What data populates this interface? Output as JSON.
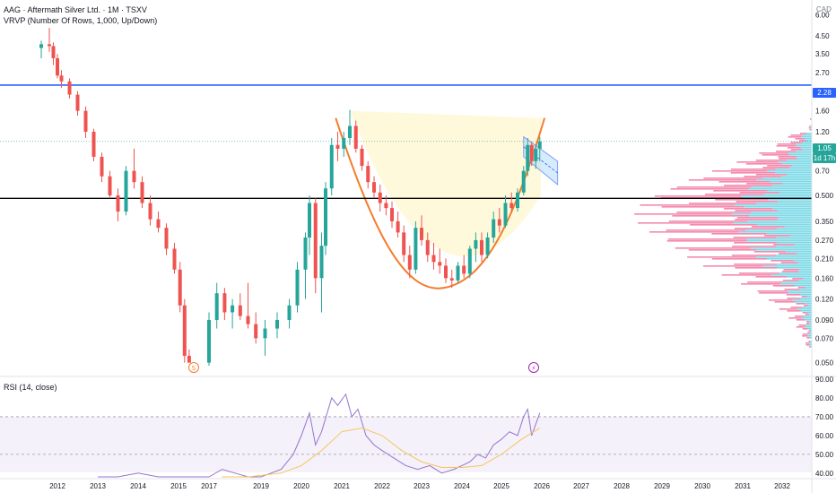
{
  "header": {
    "symbol_line": "AAG · Aftermath Silver Ltd. · 1M · TSXV",
    "vrvp_label": "VRVP (Number Of Rows, 1,000, Up/Down)",
    "currency": "CAD"
  },
  "price_tags": {
    "resistance": "2.28",
    "last": "1.05",
    "countdown": "1d 17h"
  },
  "events": {
    "dividend_icon": "dividend-s-icon",
    "split_icon": "lightning-icon"
  },
  "colors": {
    "up": "#26a69a",
    "down": "#ef5350",
    "resistance": "#2962ff",
    "support": "#000000",
    "cup": "#f57c2b",
    "cup_fill": "#fff9dc",
    "channel": "#2962ff",
    "rsi_line": "#9575cd",
    "rsi_ma": "#f7c45a",
    "vp_up": "#5dd0e0",
    "vp_down": "#f06292"
  },
  "chart_data": [
    {
      "type": "candlestick",
      "title": "AAG · Aftermath Silver Ltd. · 1M · TSXV",
      "ylabel": "CAD",
      "log_scale": true,
      "ylim": [
        0.044,
        6.5
      ],
      "x_ticks": [
        "2012",
        "2013",
        "2014",
        "2015",
        "2017",
        "2019",
        "2020",
        "2021",
        "2022",
        "2023",
        "2024",
        "2025",
        "2026",
        "2027",
        "2028",
        "2029",
        "2030",
        "2031",
        "2032"
      ],
      "y_ticks": [
        "6.00",
        "4.50",
        "3.50",
        "2.70",
        "2.10",
        "1.60",
        "1.20",
        "0.90",
        "0.70",
        "0.500",
        "0.350",
        "0.270",
        "0.210",
        "0.160",
        "0.120",
        "0.090",
        "0.070",
        "0.050"
      ],
      "horizontal_lines": [
        {
          "name": "resistance",
          "value": 2.28
        },
        {
          "name": "support",
          "value": 0.48
        }
      ],
      "last_price": 1.05,
      "cup_pattern": {
        "left_rim": 1.6,
        "bottom": 0.14,
        "right_rim": 1.45
      },
      "channel": {
        "start_top": 1.12,
        "start_bottom": 0.85,
        "end_top": 0.8,
        "end_bottom": 0.58
      },
      "candles": [
        {
          "t": 2011.6,
          "o": 3.8,
          "h": 4.2,
          "l": 3.3,
          "c": 4.0
        },
        {
          "t": 2011.8,
          "o": 4.0,
          "h": 5.0,
          "l": 3.6,
          "c": 3.9
        },
        {
          "t": 2011.9,
          "o": 3.9,
          "h": 4.1,
          "l": 3.0,
          "c": 3.3
        },
        {
          "t": 2012.0,
          "o": 3.3,
          "h": 3.5,
          "l": 2.5,
          "c": 2.6
        },
        {
          "t": 2012.1,
          "o": 2.6,
          "h": 2.8,
          "l": 2.2,
          "c": 2.4
        },
        {
          "t": 2012.3,
          "o": 2.4,
          "h": 2.5,
          "l": 1.9,
          "c": 2.0
        },
        {
          "t": 2012.5,
          "o": 2.0,
          "h": 2.1,
          "l": 1.5,
          "c": 1.6
        },
        {
          "t": 2012.7,
          "o": 1.6,
          "h": 1.7,
          "l": 1.1,
          "c": 1.2
        },
        {
          "t": 2012.9,
          "o": 1.2,
          "h": 1.25,
          "l": 0.8,
          "c": 0.85
        },
        {
          "t": 2013.1,
          "o": 0.85,
          "h": 0.9,
          "l": 0.6,
          "c": 0.65
        },
        {
          "t": 2013.3,
          "o": 0.65,
          "h": 0.7,
          "l": 0.48,
          "c": 0.5
        },
        {
          "t": 2013.5,
          "o": 0.5,
          "h": 0.55,
          "l": 0.35,
          "c": 0.4
        },
        {
          "t": 2013.7,
          "o": 0.4,
          "h": 0.75,
          "l": 0.38,
          "c": 0.7
        },
        {
          "t": 2013.9,
          "o": 0.7,
          "h": 0.95,
          "l": 0.55,
          "c": 0.6
        },
        {
          "t": 2014.1,
          "o": 0.6,
          "h": 0.65,
          "l": 0.42,
          "c": 0.45
        },
        {
          "t": 2014.3,
          "o": 0.45,
          "h": 0.5,
          "l": 0.33,
          "c": 0.36
        },
        {
          "t": 2014.5,
          "o": 0.36,
          "h": 0.4,
          "l": 0.3,
          "c": 0.32
        },
        {
          "t": 2014.7,
          "o": 0.32,
          "h": 0.34,
          "l": 0.22,
          "c": 0.24
        },
        {
          "t": 2014.9,
          "o": 0.24,
          "h": 0.26,
          "l": 0.17,
          "c": 0.18
        },
        {
          "t": 2015.1,
          "o": 0.18,
          "h": 0.2,
          "l": 0.1,
          "c": 0.11
        },
        {
          "t": 2015.4,
          "o": 0.11,
          "h": 0.12,
          "l": 0.05,
          "c": 0.055
        },
        {
          "t": 2015.7,
          "o": 0.055,
          "h": 0.06,
          "l": 0.05,
          "c": 0.05
        },
        {
          "t": 2017.0,
          "o": 0.05,
          "h": 0.1,
          "l": 0.048,
          "c": 0.09
        },
        {
          "t": 2017.3,
          "o": 0.09,
          "h": 0.15,
          "l": 0.08,
          "c": 0.13
        },
        {
          "t": 2017.6,
          "o": 0.13,
          "h": 0.14,
          "l": 0.09,
          "c": 0.1
        },
        {
          "t": 2017.9,
          "o": 0.1,
          "h": 0.12,
          "l": 0.08,
          "c": 0.11
        },
        {
          "t": 2018.2,
          "o": 0.11,
          "h": 0.13,
          "l": 0.09,
          "c": 0.095
        },
        {
          "t": 2018.5,
          "o": 0.095,
          "h": 0.15,
          "l": 0.08,
          "c": 0.085
        },
        {
          "t": 2018.8,
          "o": 0.085,
          "h": 0.1,
          "l": 0.065,
          "c": 0.07
        },
        {
          "t": 2019.1,
          "o": 0.07,
          "h": 0.09,
          "l": 0.055,
          "c": 0.08
        },
        {
          "t": 2019.4,
          "o": 0.08,
          "h": 0.1,
          "l": 0.07,
          "c": 0.09
        },
        {
          "t": 2019.7,
          "o": 0.09,
          "h": 0.12,
          "l": 0.08,
          "c": 0.11
        },
        {
          "t": 2019.9,
          "o": 0.11,
          "h": 0.2,
          "l": 0.1,
          "c": 0.18
        },
        {
          "t": 2020.1,
          "o": 0.18,
          "h": 0.3,
          "l": 0.12,
          "c": 0.28
        },
        {
          "t": 2020.2,
          "o": 0.28,
          "h": 0.5,
          "l": 0.22,
          "c": 0.45
        },
        {
          "t": 2020.35,
          "o": 0.45,
          "h": 0.48,
          "l": 0.13,
          "c": 0.16
        },
        {
          "t": 2020.5,
          "o": 0.16,
          "h": 0.3,
          "l": 0.1,
          "c": 0.25
        },
        {
          "t": 2020.6,
          "o": 0.25,
          "h": 0.6,
          "l": 0.22,
          "c": 0.55
        },
        {
          "t": 2020.75,
          "o": 0.55,
          "h": 1.1,
          "l": 0.5,
          "c": 1.0
        },
        {
          "t": 2020.9,
          "o": 1.0,
          "h": 1.2,
          "l": 0.8,
          "c": 0.95
        },
        {
          "t": 2021.05,
          "o": 0.95,
          "h": 1.2,
          "l": 0.85,
          "c": 1.1
        },
        {
          "t": 2021.2,
          "o": 1.1,
          "h": 1.62,
          "l": 1.0,
          "c": 1.3
        },
        {
          "t": 2021.35,
          "o": 1.3,
          "h": 1.4,
          "l": 0.9,
          "c": 0.95
        },
        {
          "t": 2021.5,
          "o": 0.95,
          "h": 1.0,
          "l": 0.7,
          "c": 0.75
        },
        {
          "t": 2021.65,
          "o": 0.75,
          "h": 0.8,
          "l": 0.55,
          "c": 0.6
        },
        {
          "t": 2021.8,
          "o": 0.6,
          "h": 0.65,
          "l": 0.48,
          "c": 0.52
        },
        {
          "t": 2021.95,
          "o": 0.52,
          "h": 0.58,
          "l": 0.4,
          "c": 0.45
        },
        {
          "t": 2022.1,
          "o": 0.45,
          "h": 0.5,
          "l": 0.38,
          "c": 0.42
        },
        {
          "t": 2022.25,
          "o": 0.42,
          "h": 0.46,
          "l": 0.32,
          "c": 0.35
        },
        {
          "t": 2022.4,
          "o": 0.35,
          "h": 0.4,
          "l": 0.28,
          "c": 0.3
        },
        {
          "t": 2022.55,
          "o": 0.3,
          "h": 0.33,
          "l": 0.2,
          "c": 0.22
        },
        {
          "t": 2022.7,
          "o": 0.22,
          "h": 0.25,
          "l": 0.16,
          "c": 0.18
        },
        {
          "t": 2022.85,
          "o": 0.18,
          "h": 0.35,
          "l": 0.17,
          "c": 0.32
        },
        {
          "t": 2023.0,
          "o": 0.32,
          "h": 0.38,
          "l": 0.25,
          "c": 0.27
        },
        {
          "t": 2023.15,
          "o": 0.27,
          "h": 0.3,
          "l": 0.2,
          "c": 0.22
        },
        {
          "t": 2023.3,
          "o": 0.22,
          "h": 0.26,
          "l": 0.18,
          "c": 0.2
        },
        {
          "t": 2023.45,
          "o": 0.2,
          "h": 0.24,
          "l": 0.17,
          "c": 0.19
        },
        {
          "t": 2023.6,
          "o": 0.19,
          "h": 0.21,
          "l": 0.15,
          "c": 0.16
        },
        {
          "t": 2023.75,
          "o": 0.16,
          "h": 0.18,
          "l": 0.14,
          "c": 0.155
        },
        {
          "t": 2023.9,
          "o": 0.155,
          "h": 0.2,
          "l": 0.15,
          "c": 0.19
        },
        {
          "t": 2024.05,
          "o": 0.19,
          "h": 0.22,
          "l": 0.16,
          "c": 0.17
        },
        {
          "t": 2024.2,
          "o": 0.17,
          "h": 0.25,
          "l": 0.16,
          "c": 0.24
        },
        {
          "t": 2024.35,
          "o": 0.24,
          "h": 0.3,
          "l": 0.2,
          "c": 0.27
        },
        {
          "t": 2024.5,
          "o": 0.27,
          "h": 0.3,
          "l": 0.2,
          "c": 0.22
        },
        {
          "t": 2024.65,
          "o": 0.22,
          "h": 0.3,
          "l": 0.21,
          "c": 0.28
        },
        {
          "t": 2024.8,
          "o": 0.28,
          "h": 0.4,
          "l": 0.26,
          "c": 0.36
        },
        {
          "t": 2024.95,
          "o": 0.36,
          "h": 0.42,
          "l": 0.3,
          "c": 0.33
        },
        {
          "t": 2025.1,
          "o": 0.33,
          "h": 0.5,
          "l": 0.32,
          "c": 0.45
        },
        {
          "t": 2025.25,
          "o": 0.45,
          "h": 0.52,
          "l": 0.4,
          "c": 0.42
        },
        {
          "t": 2025.4,
          "o": 0.42,
          "h": 0.55,
          "l": 0.4,
          "c": 0.52
        },
        {
          "t": 2025.55,
          "o": 0.52,
          "h": 0.75,
          "l": 0.5,
          "c": 0.7
        },
        {
          "t": 2025.65,
          "o": 0.7,
          "h": 1.1,
          "l": 0.65,
          "c": 1.0
        },
        {
          "t": 2025.75,
          "o": 1.0,
          "h": 1.05,
          "l": 0.75,
          "c": 0.8
        },
        {
          "t": 2025.85,
          "o": 0.8,
          "h": 1.0,
          "l": 0.72,
          "c": 0.95
        },
        {
          "t": 2025.95,
          "o": 0.95,
          "h": 1.12,
          "l": 0.8,
          "c": 1.05
        }
      ]
    },
    {
      "type": "line",
      "title": "RSI (14, close)",
      "ylim": [
        38,
        90
      ],
      "y_ticks": [
        "90.00",
        "80.00",
        "70.00",
        "60.00",
        "50.00",
        "40.00"
      ],
      "bands": {
        "upper": 70,
        "middle": 50
      },
      "series": [
        {
          "values_x": [
            2013.0,
            2013.5,
            2014.0,
            2014.5,
            2015.0,
            2016.0,
            2017.0,
            2017.5,
            2018.0,
            2018.5,
            2019.0,
            2019.5,
            2019.8,
            2020.0,
            2020.2,
            2020.35,
            2020.5,
            2020.75,
            2020.9,
            2021.1,
            2021.25,
            2021.4,
            2021.6,
            2021.8,
            2022.0,
            2022.3,
            2022.6,
            2022.9,
            2023.2,
            2023.5,
            2023.8,
            2024.0,
            2024.2,
            2024.4,
            2024.6,
            2024.8,
            2025.0,
            2025.2,
            2025.4,
            2025.55,
            2025.65,
            2025.75,
            2025.85,
            2025.95
          ],
          "values_y": [
            36,
            38,
            40,
            37,
            35,
            34,
            38,
            42,
            40,
            38,
            36,
            42,
            50,
            60,
            72,
            55,
            62,
            80,
            76,
            82,
            70,
            74,
            60,
            55,
            52,
            48,
            44,
            42,
            44,
            40,
            42,
            44,
            46,
            50,
            48,
            55,
            58,
            62,
            60,
            70,
            74,
            60,
            66,
            72
          ]
        },
        {
          "values_x": [
            2017.5,
            2018.5,
            2019.5,
            2020.0,
            2020.5,
            2021.0,
            2021.5,
            2022.0,
            2022.5,
            2023.0,
            2023.5,
            2024.0,
            2024.5,
            2025.0,
            2025.5,
            2025.95
          ],
          "values_y": [
            38,
            38,
            40,
            44,
            52,
            62,
            64,
            60,
            52,
            46,
            43,
            43,
            44,
            50,
            58,
            64
          ]
        }
      ]
    }
  ]
}
